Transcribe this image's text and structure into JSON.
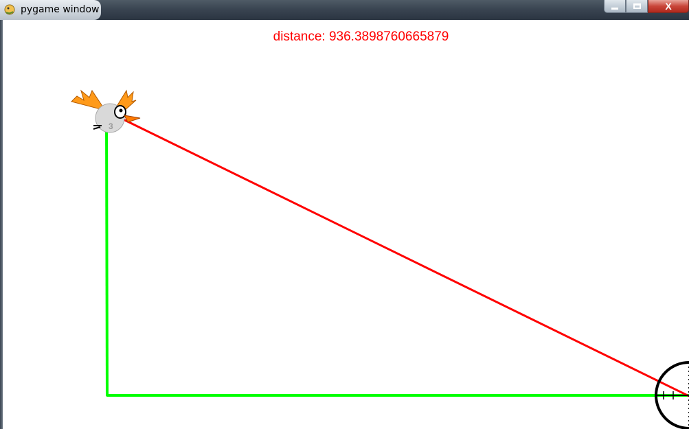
{
  "window": {
    "title": "pygame window",
    "close_glyph": "X"
  },
  "hud": {
    "distance_label": "distance: 936.3898760665879"
  },
  "sprite": {
    "badge": "3"
  },
  "icons": {
    "app": "pygame-snake-icon",
    "minimize": "minimize-icon",
    "maximize": "maximize-icon",
    "close": "close-icon"
  },
  "colors": {
    "line_direct": "#ff0000",
    "line_legs": "#00ff00",
    "text": "#ff0000"
  }
}
